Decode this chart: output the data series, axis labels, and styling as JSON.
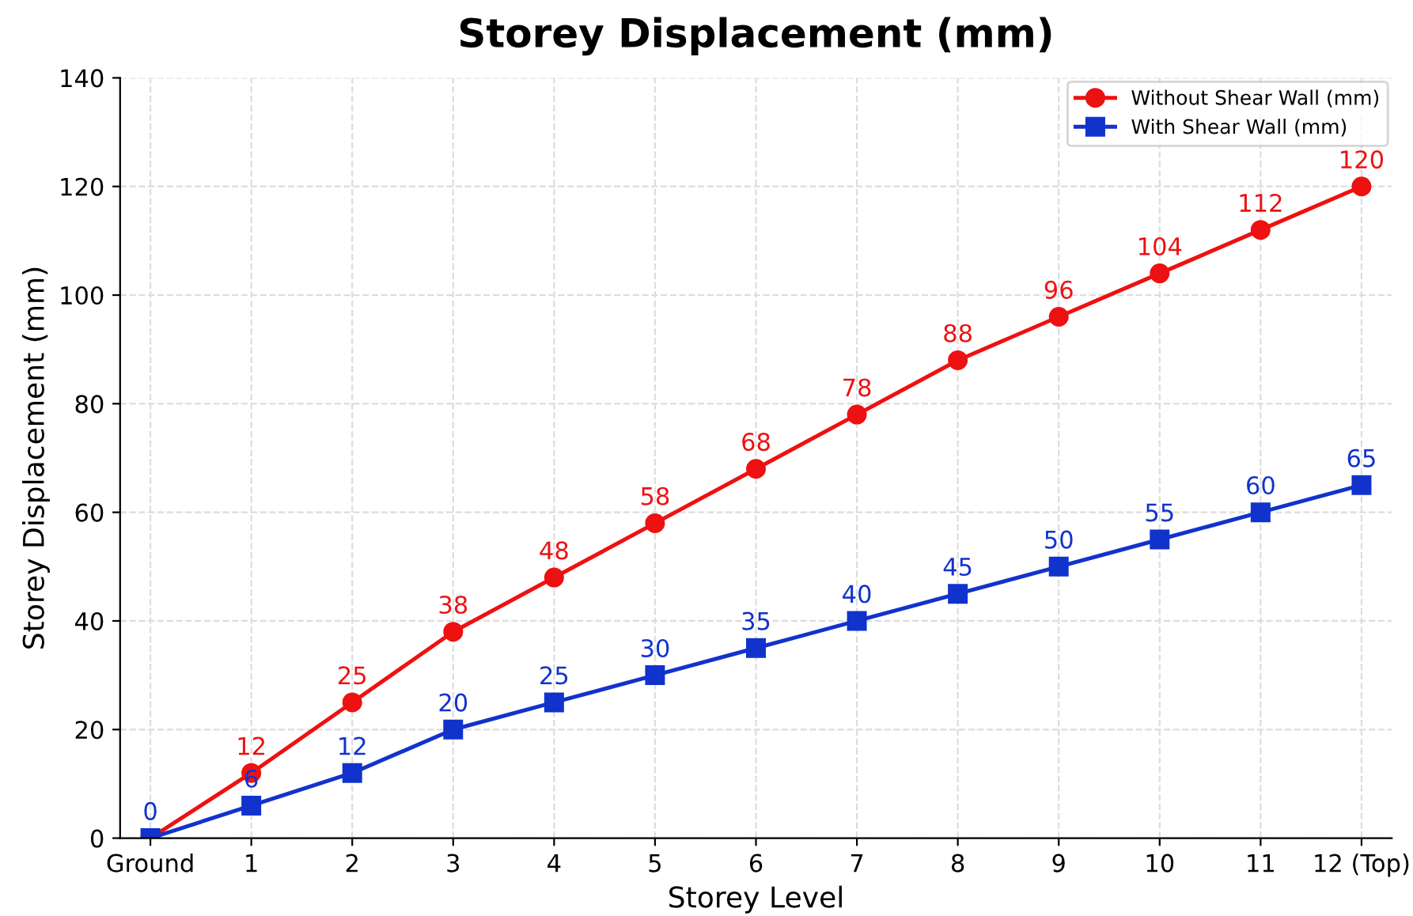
{
  "chart_data": {
    "type": "line",
    "title": "Storey Displacement (mm)",
    "xlabel": "Storey Level",
    "ylabel": "Storey Displacement (mm)",
    "categories": [
      "Ground",
      "1",
      "2",
      "3",
      "4",
      "5",
      "6",
      "7",
      "8",
      "9",
      "10",
      "11",
      "12 (Top)"
    ],
    "series": [
      {
        "name": "Without Shear Wall (mm)",
        "color": "#ee1111",
        "marker": "circle",
        "values": [
          0,
          12,
          25,
          38,
          48,
          58,
          68,
          78,
          88,
          96,
          104,
          112,
          120
        ],
        "value_labels": [
          null,
          "12",
          "25",
          "38",
          "48",
          "58",
          "68",
          "78",
          "88",
          "96",
          "104",
          "112",
          "120"
        ]
      },
      {
        "name": "With Shear Wall (mm)",
        "color": "#1133cc",
        "marker": "square",
        "values": [
          0,
          6,
          12,
          20,
          25,
          30,
          35,
          40,
          45,
          50,
          55,
          60,
          65
        ],
        "value_labels": [
          "0",
          "6",
          "12",
          "20",
          "25",
          "30",
          "35",
          "40",
          "45",
          "50",
          "55",
          "60",
          "65"
        ]
      }
    ],
    "ylim": [
      0,
      140
    ],
    "yticks": [
      0,
      20,
      40,
      60,
      80,
      100,
      120,
      140
    ],
    "grid": true,
    "legend": "top right",
    "line_style": "solid"
  }
}
